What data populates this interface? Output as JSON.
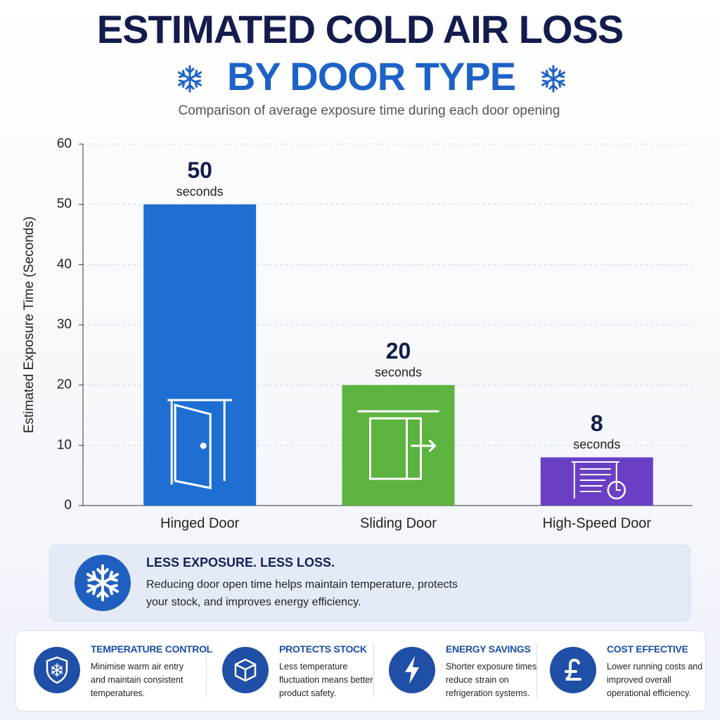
{
  "chart_data": {
    "type": "bar",
    "title": "ESTIMATED COLD AIR LOSS",
    "title_line2": "BY DOOR TYPE",
    "subtitle": "Comparison of average exposure time during each door opening",
    "y_label": "Estimated Exposure Time (Seconds)",
    "categories": [
      "Hinged Door",
      "Sliding Door",
      "High-Speed Door"
    ],
    "values": [
      50,
      20,
      8
    ],
    "value_unit": "seconds",
    "colors": [
      "#1f6fd3",
      "#5db33f",
      "#6a3fc4"
    ],
    "ylim": [
      0,
      60
    ],
    "yticks": [
      0,
      10,
      20,
      30,
      40,
      50,
      60
    ],
    "grid": true
  },
  "callout": {
    "heading": "LESS EXPOSURE. LESS LOSS.",
    "text": "Reducing door open time helps maintain temperature, protects your stock, and improves energy efficiency."
  },
  "features": [
    {
      "title": "TEMPERATURE CONTROL",
      "text": "Minimise warm air entry and maintain consistent temperatures."
    },
    {
      "title": "PROTECTS STOCK",
      "text": "Less temperature fluctuation means better product safety."
    },
    {
      "title": "ENERGY SAVINGS",
      "text": "Shorter exposure times reduce strain on refrigeration systems."
    },
    {
      "title": "COST EFFECTIVE",
      "text": "Lower running costs and improved overall operational efficiency."
    }
  ]
}
